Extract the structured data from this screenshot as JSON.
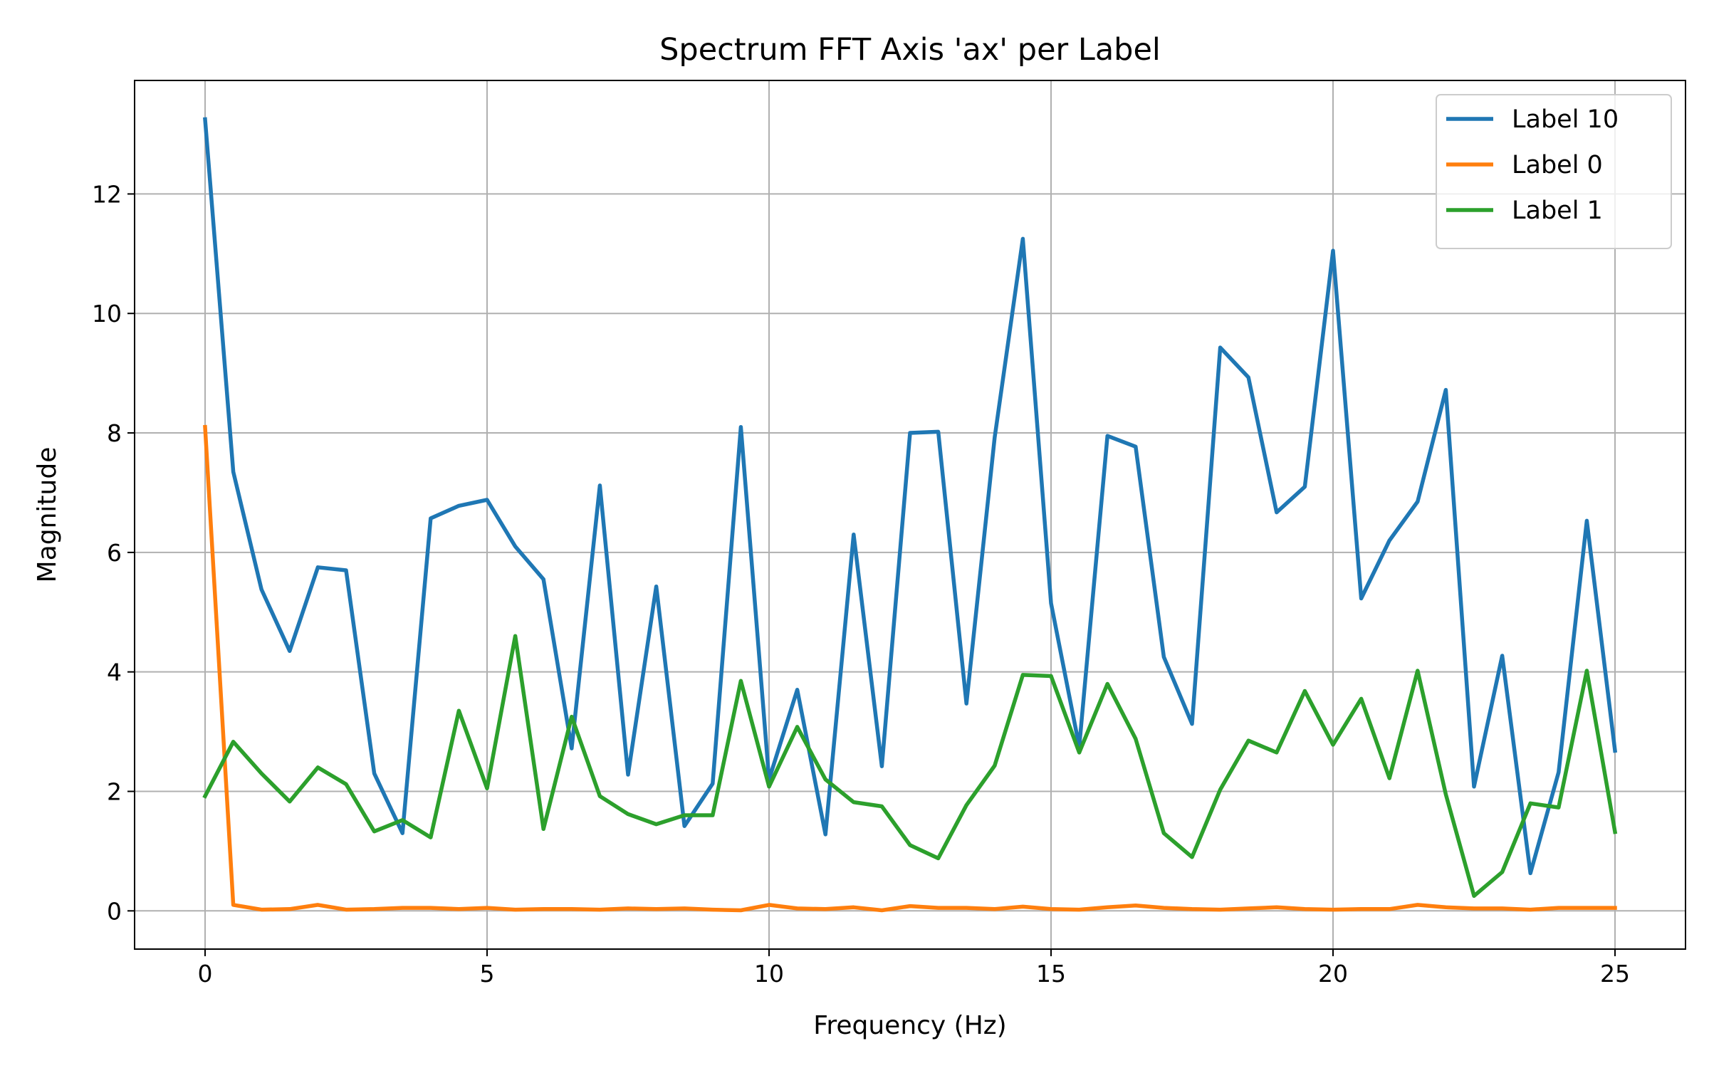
{
  "chart_data": {
    "type": "line",
    "title": "Spectrum FFT Axis 'ax' per Label",
    "xlabel": "Frequency (Hz)",
    "ylabel": "Magnitude",
    "xlim": [
      -1.25,
      26.25
    ],
    "ylim": [
      -0.64,
      13.9
    ],
    "xticks": [
      0,
      5,
      10,
      15,
      20,
      25
    ],
    "yticks": [
      0,
      2,
      4,
      6,
      8,
      10,
      12
    ],
    "grid": true,
    "legend_position": "top-right",
    "x": [
      0,
      0.5,
      1,
      1.5,
      2,
      2.5,
      3,
      3.5,
      4,
      4.5,
      5,
      5.5,
      6,
      6.5,
      7,
      7.5,
      8,
      8.5,
      9,
      9.5,
      10,
      10.5,
      11,
      11.5,
      12,
      12.5,
      13,
      13.5,
      14,
      14.5,
      15,
      15.5,
      16,
      16.5,
      17,
      17.5,
      18,
      18.5,
      19,
      19.5,
      20,
      20.5,
      21,
      21.5,
      22,
      22.5,
      23,
      23.5,
      24,
      24.5,
      25
    ],
    "series": [
      {
        "name": "Label 10",
        "color": "#1f77b4",
        "values": [
          13.25,
          7.35,
          5.38,
          4.35,
          5.75,
          5.7,
          2.3,
          1.3,
          6.57,
          6.78,
          6.88,
          6.1,
          5.55,
          2.72,
          7.12,
          2.28,
          5.43,
          1.42,
          2.13,
          8.1,
          2.2,
          3.7,
          1.28,
          6.3,
          2.42,
          8.0,
          8.02,
          3.47,
          7.92,
          11.25,
          5.15,
          2.75,
          7.95,
          7.77,
          4.25,
          3.13,
          9.43,
          8.93,
          6.67,
          7.1,
          11.05,
          5.23,
          6.2,
          6.85,
          8.72,
          2.08,
          4.27,
          0.63,
          2.32,
          6.53,
          2.68
        ]
      },
      {
        "name": "Label 0",
        "color": "#ff7f0e",
        "values": [
          8.1,
          0.1,
          0.02,
          0.03,
          0.1,
          0.02,
          0.03,
          0.05,
          0.05,
          0.03,
          0.05,
          0.02,
          0.03,
          0.03,
          0.02,
          0.04,
          0.03,
          0.04,
          0.02,
          0.01,
          0.1,
          0.04,
          0.03,
          0.06,
          0.01,
          0.08,
          0.05,
          0.05,
          0.03,
          0.07,
          0.03,
          0.02,
          0.06,
          0.09,
          0.05,
          0.03,
          0.02,
          0.04,
          0.06,
          0.03,
          0.02,
          0.03,
          0.03,
          0.1,
          0.06,
          0.04,
          0.04,
          0.02,
          0.05,
          0.05,
          0.05
        ]
      },
      {
        "name": "Label 1",
        "color": "#2ca02c",
        "values": [
          1.92,
          2.83,
          2.3,
          1.83,
          2.4,
          2.12,
          1.33,
          1.52,
          1.23,
          3.35,
          2.05,
          4.6,
          1.37,
          3.25,
          1.92,
          1.62,
          1.45,
          1.6,
          1.6,
          3.85,
          2.08,
          3.08,
          2.2,
          1.82,
          1.75,
          1.1,
          0.88,
          1.77,
          2.43,
          3.95,
          3.93,
          2.65,
          3.8,
          2.88,
          1.3,
          0.9,
          2.03,
          2.85,
          2.65,
          3.68,
          2.78,
          3.55,
          2.22,
          4.02,
          1.95,
          0.25,
          0.65,
          1.8,
          1.73,
          4.02,
          1.32
        ]
      }
    ]
  }
}
